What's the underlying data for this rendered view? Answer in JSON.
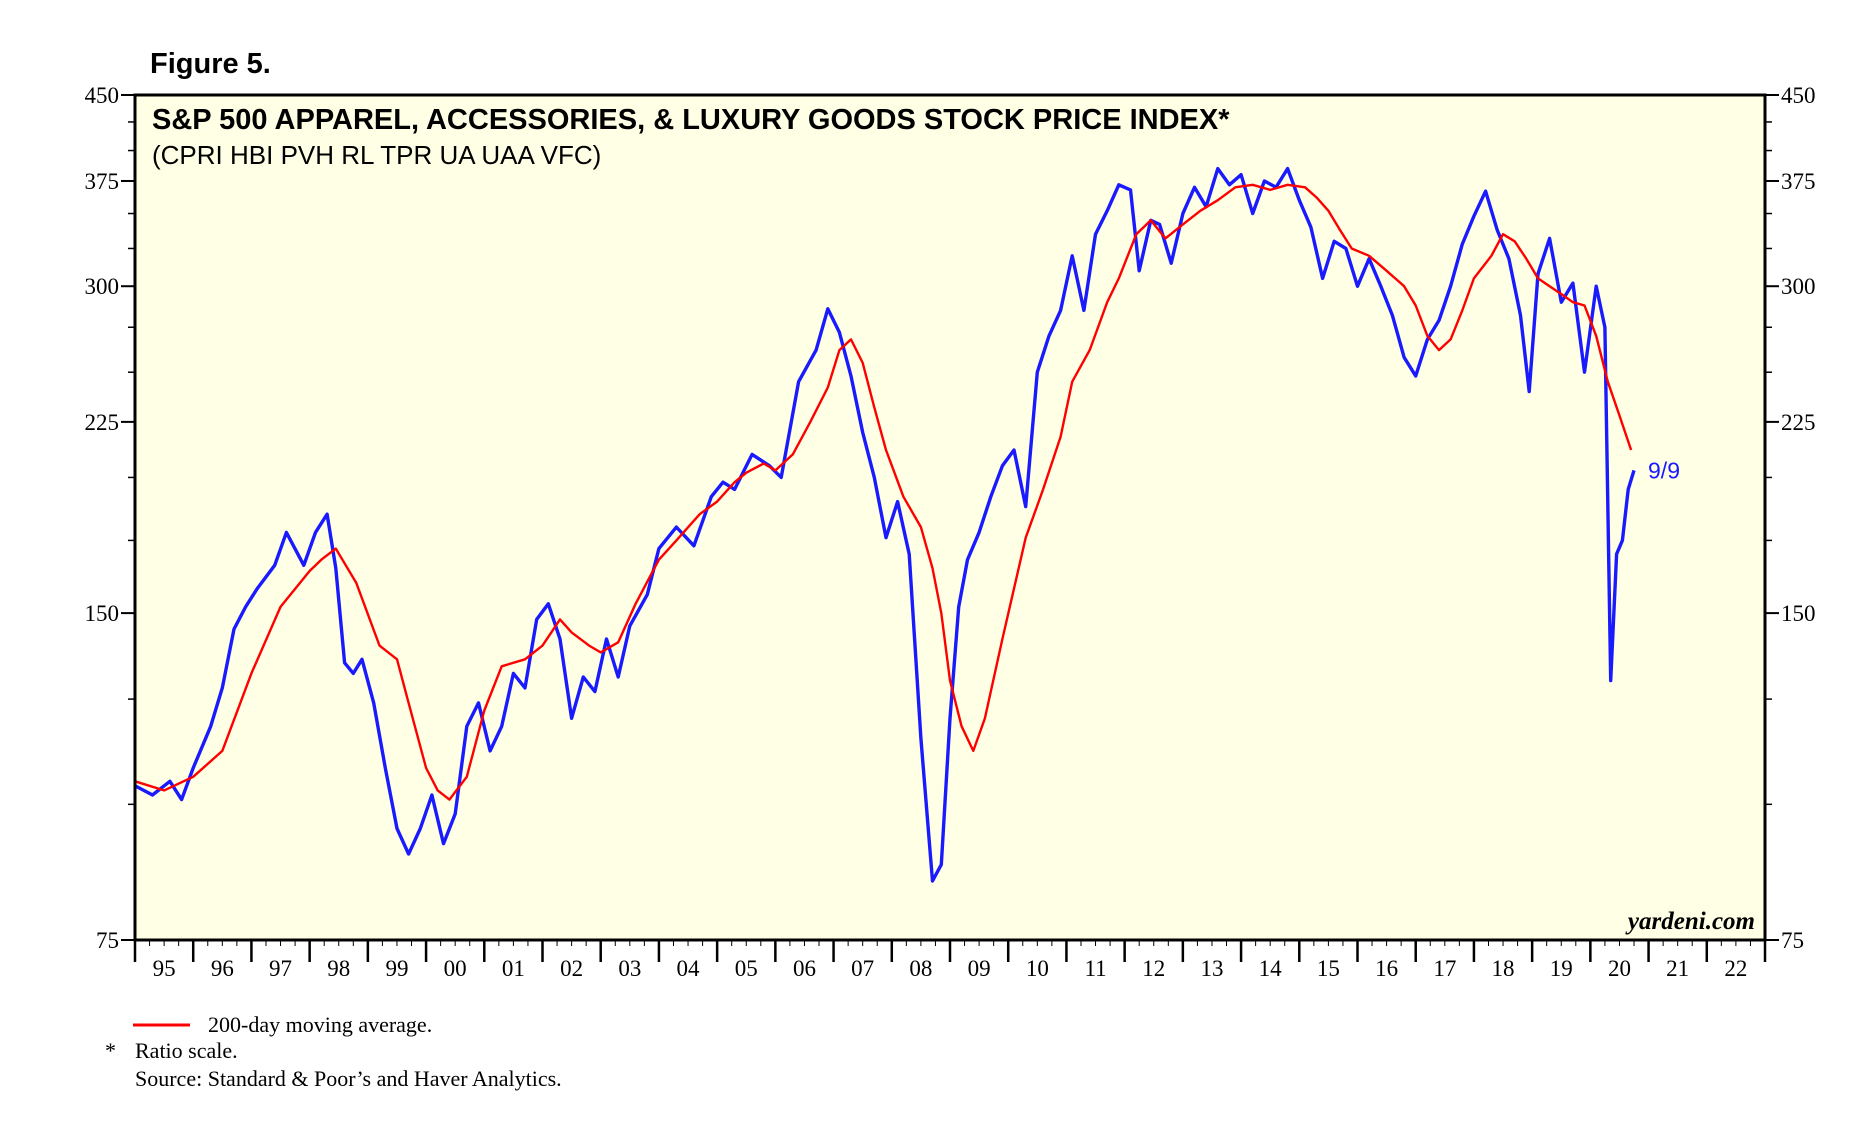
{
  "figure_label": "Figure 5.",
  "watermark": "yardeni.com",
  "colors": {
    "plot_background": "#ffffe6",
    "index_line": "#1a1aff",
    "moving_average": "#ff0000",
    "frame": "#000000"
  },
  "footnotes": {
    "legend_label": "200-day moving average.",
    "asterisk": "*",
    "ratio_note": "Ratio scale.",
    "source": "Source: Standard & Poor’s and Haver Analytics."
  },
  "chart_data": {
    "type": "line",
    "title": "S&P 500 APPAREL, ACCESSORIES, & LUXURY GOODS STOCK PRICE INDEX*",
    "subtitle": "(CPRI HBI PVH RL TPR UA UAA VFC)",
    "scale": "log",
    "y_ticks": [
      75,
      150,
      225,
      300,
      375,
      450
    ],
    "y_tick_labels": [
      "75",
      "150",
      "225",
      "300",
      "375",
      "450"
    ],
    "ylim": [
      75,
      450
    ],
    "x_tick_labels": [
      "95",
      "96",
      "97",
      "98",
      "99",
      "00",
      "01",
      "02",
      "03",
      "04",
      "05",
      "06",
      "07",
      "08",
      "09",
      "10",
      "11",
      "12",
      "13",
      "14",
      "15",
      "16",
      "17",
      "18",
      "19",
      "20",
      "21",
      "22"
    ],
    "xlim": [
      1995.0,
      2023.0
    ],
    "last_point_label": "9/9",
    "series": [
      {
        "key": "index",
        "x": [
          1995.0,
          1995.3,
          1995.6,
          1995.8,
          1996.0,
          1996.3,
          1996.5,
          1996.7,
          1996.9,
          1997.1,
          1997.4,
          1997.6,
          1997.9,
          1998.1,
          1998.3,
          1998.45,
          1998.6,
          1998.75,
          1998.9,
          1999.1,
          1999.3,
          1999.5,
          1999.7,
          1999.9,
          2000.1,
          2000.3,
          2000.5,
          2000.7,
          2000.9,
          2001.1,
          2001.3,
          2001.5,
          2001.7,
          2001.9,
          2002.1,
          2002.3,
          2002.5,
          2002.7,
          2002.9,
          2003.1,
          2003.3,
          2003.5,
          2003.8,
          2004.0,
          2004.3,
          2004.6,
          2004.9,
          2005.1,
          2005.3,
          2005.6,
          2005.9,
          2006.1,
          2006.4,
          2006.7,
          2006.9,
          2007.1,
          2007.3,
          2007.5,
          2007.7,
          2007.9,
          2008.1,
          2008.3,
          2008.5,
          2008.7,
          2008.85,
          2009.0,
          2009.15,
          2009.3,
          2009.5,
          2009.7,
          2009.9,
          2010.1,
          2010.3,
          2010.5,
          2010.7,
          2010.9,
          2011.1,
          2011.3,
          2011.5,
          2011.7,
          2011.9,
          2012.1,
          2012.25,
          2012.45,
          2012.6,
          2012.8,
          2013.0,
          2013.2,
          2013.4,
          2013.6,
          2013.8,
          2014.0,
          2014.2,
          2014.4,
          2014.6,
          2014.8,
          2015.0,
          2015.2,
          2015.4,
          2015.6,
          2015.8,
          2016.0,
          2016.2,
          2016.4,
          2016.6,
          2016.8,
          2017.0,
          2017.2,
          2017.4,
          2017.6,
          2017.8,
          2018.0,
          2018.2,
          2018.4,
          2018.6,
          2018.8,
          2018.95,
          2019.1,
          2019.3,
          2019.5,
          2019.7,
          2019.9,
          2020.1,
          2020.25,
          2020.35,
          2020.45,
          2020.55,
          2020.65,
          2020.75
        ],
        "values": [
          104,
          102,
          105,
          101,
          108,
          118,
          128,
          145,
          152,
          158,
          166,
          178,
          166,
          178,
          185,
          165,
          135,
          132,
          136,
          124,
          108,
          95,
          90,
          95,
          102,
          92,
          98,
          118,
          124,
          112,
          118,
          132,
          128,
          148,
          153,
          142,
          120,
          131,
          127,
          142,
          131,
          146,
          156,
          172,
          180,
          173,
          192,
          198,
          195,
          210,
          205,
          200,
          245,
          262,
          286,
          272,
          248,
          220,
          200,
          176,
          190,
          170,
          115,
          85,
          88,
          120,
          152,
          168,
          178,
          192,
          205,
          212,
          188,
          250,
          270,
          285,
          320,
          285,
          335,
          352,
          372,
          368,
          310,
          345,
          342,
          315,
          350,
          370,
          355,
          385,
          372,
          380,
          350,
          375,
          370,
          385,
          360,
          340,
          305,
          330,
          325,
          300,
          318,
          300,
          282,
          258,
          248,
          268,
          279,
          300,
          328,
          348,
          367,
          338,
          318,
          282,
          240,
          308,
          332,
          290,
          302,
          250,
          300,
          275,
          130,
          170,
          175,
          195,
          203
        ],
        "name": ""
      },
      {
        "key": "ma200",
        "x": [
          1995.0,
          1995.5,
          1996.0,
          1996.5,
          1997.0,
          1997.5,
          1998.0,
          1998.2,
          1998.45,
          1998.8,
          1999.2,
          1999.5,
          1999.7,
          2000.0,
          2000.2,
          2000.4,
          2000.7,
          2001.0,
          2001.3,
          2001.7,
          2002.0,
          2002.3,
          2002.5,
          2002.8,
          2003.0,
          2003.3,
          2003.6,
          2004.0,
          2004.3,
          2004.7,
          2005.0,
          2005.3,
          2005.5,
          2005.8,
          2006.0,
          2006.3,
          2006.6,
          2006.9,
          2007.1,
          2007.3,
          2007.5,
          2007.7,
          2007.9,
          2008.2,
          2008.5,
          2008.7,
          2008.85,
          2009.0,
          2009.2,
          2009.4,
          2009.6,
          2009.9,
          2010.3,
          2010.6,
          2010.9,
          2011.1,
          2011.4,
          2011.7,
          2011.9,
          2012.2,
          2012.45,
          2012.7,
          2013.0,
          2013.3,
          2013.6,
          2013.9,
          2014.2,
          2014.5,
          2014.8,
          2015.1,
          2015.3,
          2015.5,
          2015.7,
          2015.9,
          2016.2,
          2016.5,
          2016.8,
          2017.0,
          2017.2,
          2017.4,
          2017.6,
          2017.8,
          2018.0,
          2018.3,
          2018.5,
          2018.7,
          2018.9,
          2019.1,
          2019.3,
          2019.5,
          2019.7,
          2019.9,
          2020.1,
          2020.3,
          2020.5,
          2020.7
        ],
        "values": [
          105,
          103,
          106,
          112,
          132,
          152,
          164,
          168,
          172,
          160,
          140,
          136,
          124,
          108,
          103,
          101,
          106,
          122,
          134,
          136,
          140,
          148,
          144,
          140,
          138,
          141,
          153,
          168,
          175,
          185,
          190,
          198,
          202,
          206,
          203,
          210,
          225,
          242,
          262,
          268,
          255,
          232,
          212,
          192,
          180,
          165,
          150,
          130,
          118,
          112,
          120,
          142,
          176,
          195,
          218,
          245,
          262,
          290,
          305,
          335,
          345,
          332,
          342,
          352,
          360,
          370,
          372,
          368,
          372,
          370,
          362,
          352,
          338,
          325,
          320,
          310,
          300,
          288,
          270,
          262,
          268,
          285,
          305,
          320,
          335,
          330,
          318,
          305,
          300,
          295,
          290,
          288,
          270,
          245,
          228,
          212
        ],
        "name": ""
      }
    ]
  }
}
